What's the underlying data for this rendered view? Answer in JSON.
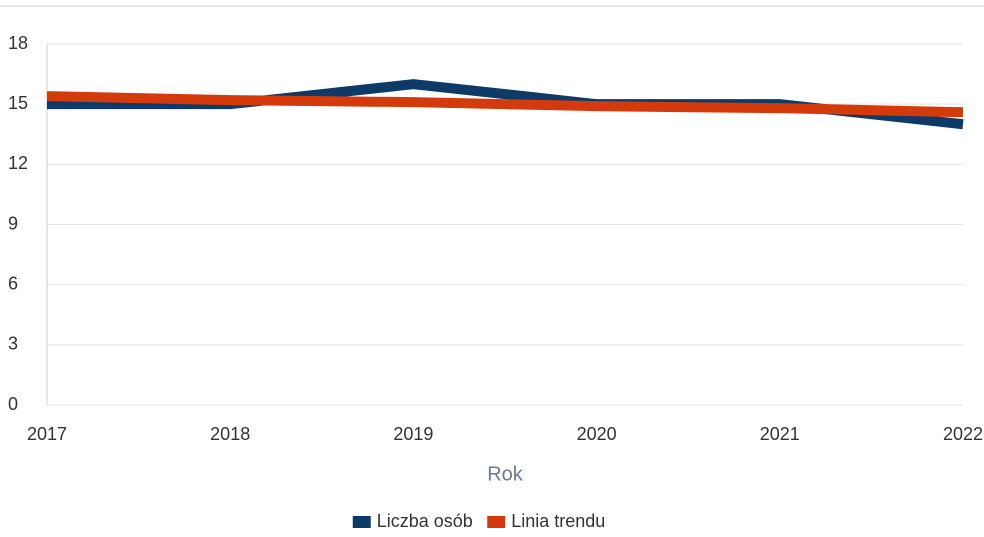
{
  "chart_data": {
    "type": "line",
    "x_label": "Rok",
    "x": [
      2017,
      2018,
      2019,
      2020,
      2021,
      2022
    ],
    "series": [
      {
        "name": "Liczba osób",
        "color": "#0d3a66",
        "values": [
          15,
          15,
          16,
          15,
          15,
          14
        ]
      },
      {
        "name": "Linia trendu",
        "color": "#d43a0c",
        "values": [
          15.4,
          15.2,
          15.1,
          14.9,
          14.8,
          14.6
        ]
      }
    ],
    "xlim": [
      2017,
      2022
    ],
    "xticks": [
      2017,
      2018,
      2019,
      2020,
      2021,
      2022
    ],
    "ylim": [
      0,
      18
    ],
    "yticks": [
      0,
      3,
      6,
      9,
      12,
      15,
      18
    ],
    "grid": true,
    "legend": "bottom"
  }
}
